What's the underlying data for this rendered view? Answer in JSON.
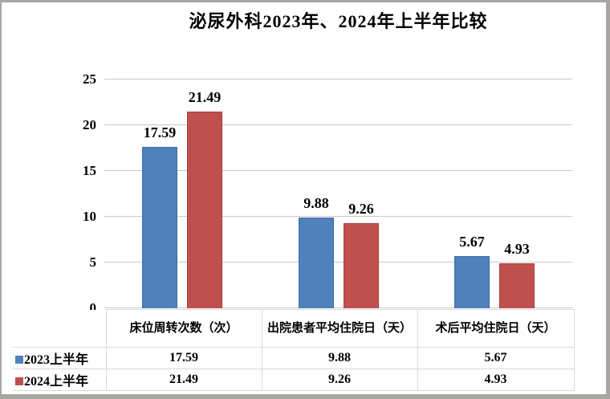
{
  "title": "泌尿外科2023年、2024年上半年比较",
  "colors": {
    "series_2023": "#4f81bd",
    "series_2024": "#c0504d",
    "gridline": "#c9c9c9",
    "table_border": "#d9d9d9",
    "frame_border": "#a8a6a3"
  },
  "chart_data": {
    "type": "bar",
    "title": "泌尿外科2023年、2024年上半年比较",
    "categories": [
      "床位周转次数（次）",
      "出院患者平均住院日（天）",
      "术后平均住院日（天）"
    ],
    "series": [
      {
        "name": "2023上半年",
        "color": "#4f81bd",
        "values": [
          17.59,
          9.88,
          5.67
        ],
        "labels": [
          "17.59",
          "9.88",
          "5.67"
        ]
      },
      {
        "name": "2024上半年",
        "color": "#c0504d",
        "values": [
          21.49,
          9.26,
          4.93
        ],
        "labels": [
          "21.49",
          "9.26",
          "4.93"
        ]
      }
    ],
    "xlabel": "",
    "ylabel": "",
    "ylim": [
      0,
      25
    ],
    "y_ticks": [
      0,
      5,
      10,
      15,
      20,
      25
    ],
    "grid": true,
    "data_labels": true,
    "legend_position": "bottom-table-left"
  },
  "table": {
    "header": [
      "床位周转次数（次）",
      "出院患者平均住院日（天）",
      "术后平均住院日（天）"
    ],
    "rows": [
      {
        "legend": "2023上半年",
        "values": [
          "17.59",
          "9.88",
          "5.67"
        ]
      },
      {
        "legend": "2024上半年",
        "values": [
          "21.49",
          "9.26",
          "4.93"
        ]
      }
    ]
  }
}
